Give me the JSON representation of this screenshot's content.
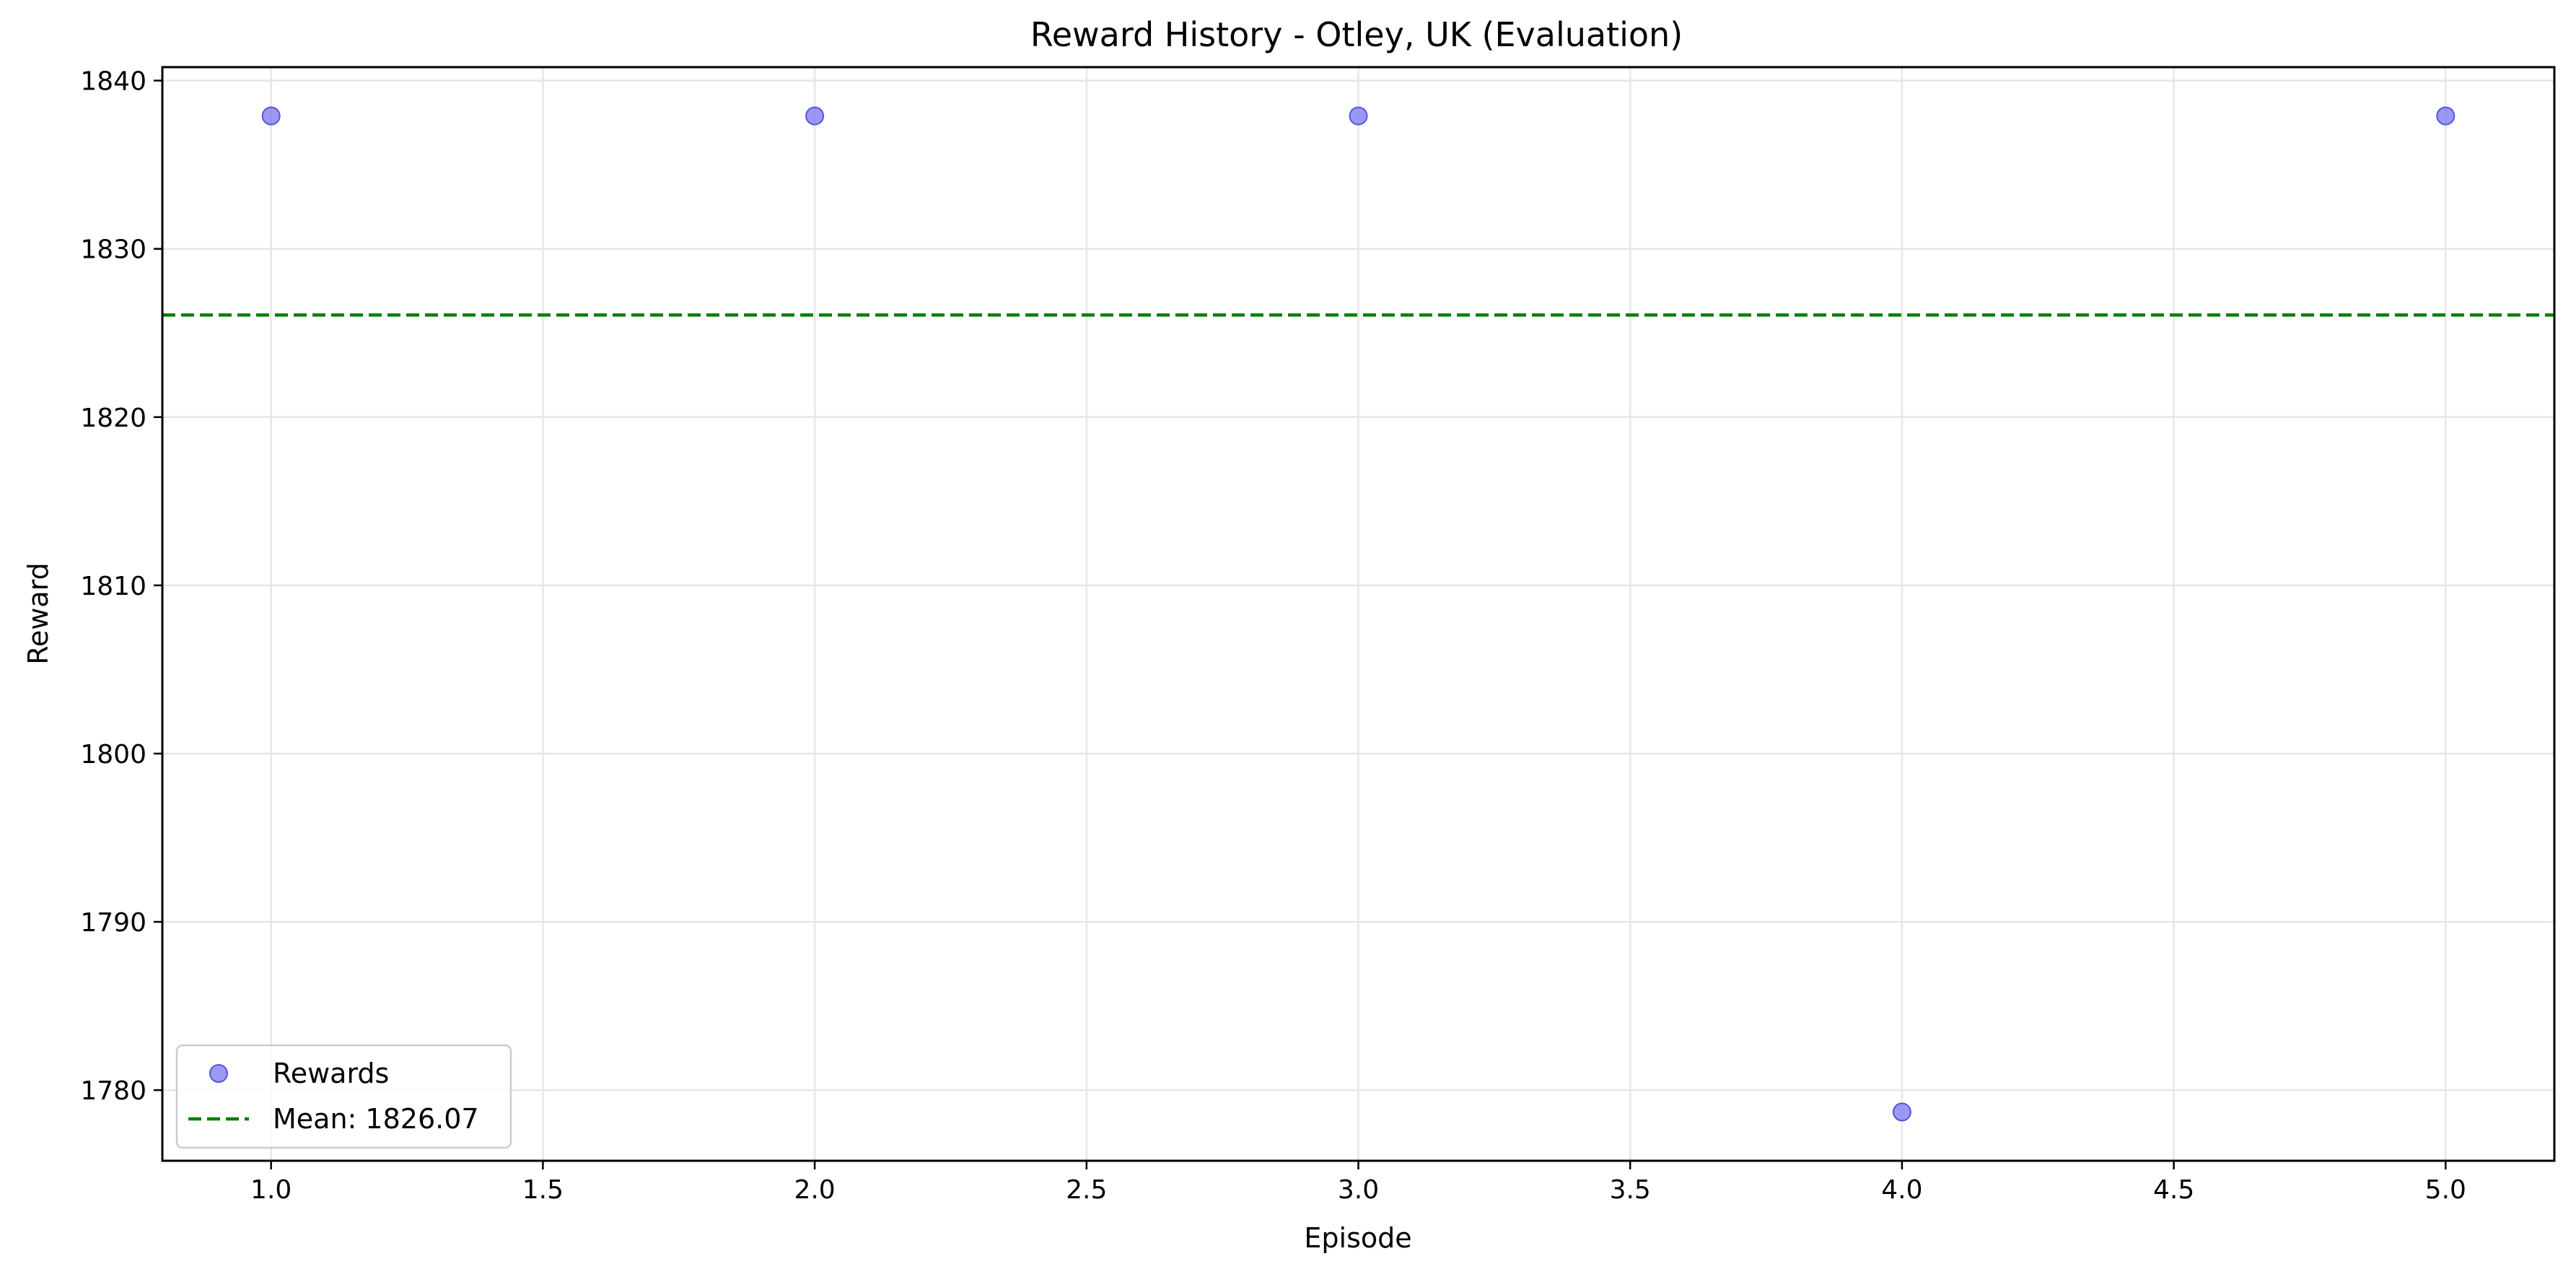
{
  "chart_data": {
    "type": "scatter",
    "title": "Reward History - Otley, UK (Evaluation)",
    "xlabel": "Episode",
    "ylabel": "Reward",
    "xlim": [
      0.8,
      5.2
    ],
    "ylim": [
      1775.8,
      1840.8
    ],
    "xticks": [
      1.0,
      1.5,
      2.0,
      2.5,
      3.0,
      3.5,
      4.0,
      4.5,
      5.0
    ],
    "xtick_labels": [
      "1.0",
      "1.5",
      "2.0",
      "2.5",
      "3.0",
      "3.5",
      "4.0",
      "4.5",
      "5.0"
    ],
    "yticks": [
      1780,
      1790,
      1800,
      1810,
      1820,
      1830,
      1840
    ],
    "ytick_labels": [
      "1780",
      "1790",
      "1800",
      "1810",
      "1820",
      "1830",
      "1840"
    ],
    "grid": true,
    "legend_position": "bottom-left",
    "series": [
      {
        "name": "Rewards",
        "kind": "scatter",
        "color": "#8080f0",
        "x": [
          1,
          2,
          3,
          4,
          5
        ],
        "y": [
          1837.9,
          1837.9,
          1837.9,
          1778.7,
          1837.9
        ]
      }
    ],
    "reference_lines": [
      {
        "name": "Mean: 1826.07",
        "kind": "hline",
        "style": "dashed",
        "color": "#008000",
        "y": 1826.07
      }
    ]
  }
}
